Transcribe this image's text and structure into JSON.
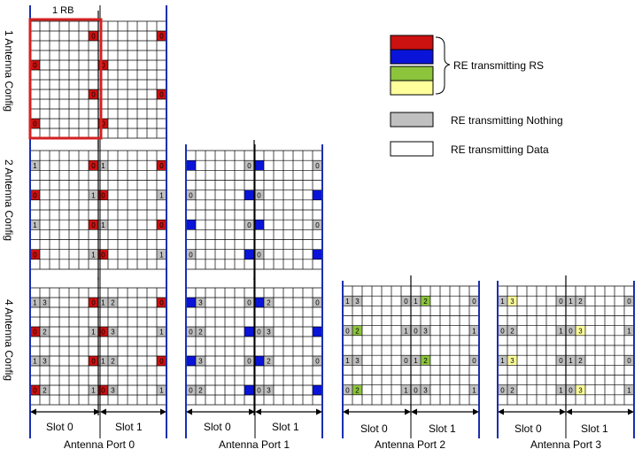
{
  "rb_label": "1 RB",
  "row_labels": [
    "1 Antenna Config",
    "2 Antenna Config",
    "4 Antenna Config"
  ],
  "slot_labels": [
    "Slot 0",
    "Slot 1"
  ],
  "port_labels": [
    "Antenna Port 0",
    "Antenna Port 1",
    "Antenna Port 2",
    "Antenna Port 3"
  ],
  "legend": {
    "rs_label": "RE transmitting RS",
    "nothing_label": "RE transmitting Nothing",
    "data_label": "RE transmitting Data"
  },
  "colors": {
    "port0": "#cc1111",
    "port1": "#0a14d8",
    "port2": "#8cc43c",
    "port3": "#ffff9c",
    "nothing": "#c0c0c0",
    "data": "#ffffff",
    "grid_line": "#000000",
    "slot_boundary": "#1a2fb0",
    "rb_outline": "#d42020"
  },
  "cell_texts": {
    "port0": "0",
    "port1": "1",
    "port2": "2",
    "port3": "3"
  }
}
